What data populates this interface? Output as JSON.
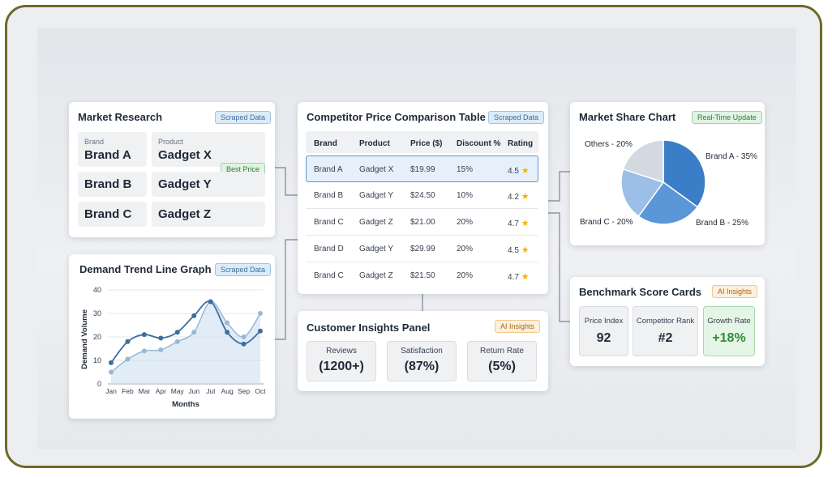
{
  "market_research": {
    "title": "Market Research",
    "tag": "Scraped Data",
    "brand_header": "Brand",
    "product_header": "Product",
    "best_price_tag": "Best Price",
    "rows": [
      {
        "brand": "Brand A",
        "product": "Gadget X"
      },
      {
        "brand": "Brand B",
        "product": "Gadget Y"
      },
      {
        "brand": "Brand C",
        "product": "Gadget Z"
      }
    ]
  },
  "price_table": {
    "title": "Competitor Price Comparison Table",
    "tag": "Scraped Data",
    "headers": [
      "Brand",
      "Product",
      "Price ($)",
      "Discount %",
      "Rating"
    ],
    "rows": [
      {
        "brand": "Brand A",
        "product": "Gadget X",
        "price": "$19.99",
        "discount": "15%",
        "rating": "4.5"
      },
      {
        "brand": "Brand B",
        "product": "Gadget Y",
        "price": "$24.50",
        "discount": "10%",
        "rating": "4.2"
      },
      {
        "brand": "Brand C",
        "product": "Gadget Z",
        "price": "$21.00",
        "discount": "20%",
        "rating": "4.7"
      },
      {
        "brand": "Brand D",
        "product": "Gadget Y",
        "price": "$29.99",
        "discount": "20%",
        "rating": "4.5"
      },
      {
        "brand": "Brand C",
        "product": "Gadget Z",
        "price": "$21.50",
        "discount": "20%",
        "rating": "4.7"
      }
    ],
    "star_icon": "star-icon"
  },
  "market_share": {
    "title": "Market Share Chart",
    "tag": "Real-Time Update"
  },
  "demand_trend": {
    "title": "Demand Trend Line Graph",
    "tag": "Scraped Data"
  },
  "customer_insights": {
    "title": "Customer Insights Panel",
    "tag": "AI Insights",
    "items": [
      {
        "label": "Reviews",
        "value": "(1200+)"
      },
      {
        "label": "Satisfaction",
        "value": "(87%)"
      },
      {
        "label": "Return Rate",
        "value": "(5%)"
      }
    ]
  },
  "benchmark": {
    "title": "Benchmark Score Cards",
    "tag": "AI Insights",
    "items": [
      {
        "label": "Price Index",
        "value": "92"
      },
      {
        "label": "Competitor Rank",
        "value": "#2"
      },
      {
        "label": "Growth Rate",
        "value": "+18%"
      }
    ]
  },
  "colors": {
    "pie": [
      "#3a7ec7",
      "#5b97d6",
      "#9bbfe6",
      "#d3d9e0"
    ],
    "line_dark": "#3c6e9e",
    "line_light": "#97b8d6",
    "growth_green": "#2e8b3c"
  },
  "chart_data": [
    {
      "type": "pie",
      "labels": [
        "Brand A - 35%",
        "Brand B - 25%",
        "Brand C - 20%",
        "Others - 20%"
      ],
      "values": [
        35,
        25,
        20,
        20
      ],
      "legend": "labels beside slices"
    },
    {
      "type": "line",
      "categories": [
        "Jan",
        "Feb",
        "Mar",
        "Apr",
        "May",
        "Jun",
        "Jul",
        "Aug",
        "Sep",
        "Oct"
      ],
      "series": [
        {
          "values": [
            9,
            18,
            21,
            19.5,
            22,
            29,
            35,
            22,
            17,
            22.5
          ]
        },
        {
          "values": [
            5,
            10.5,
            14,
            14.5,
            18,
            22,
            35,
            26,
            20,
            30
          ]
        }
      ],
      "xlabel": "Months",
      "ylabel": "Demand Volume",
      "ylim": [
        0,
        40
      ],
      "yticks": [
        0,
        10,
        20,
        30,
        40
      ],
      "grid": true
    }
  ]
}
